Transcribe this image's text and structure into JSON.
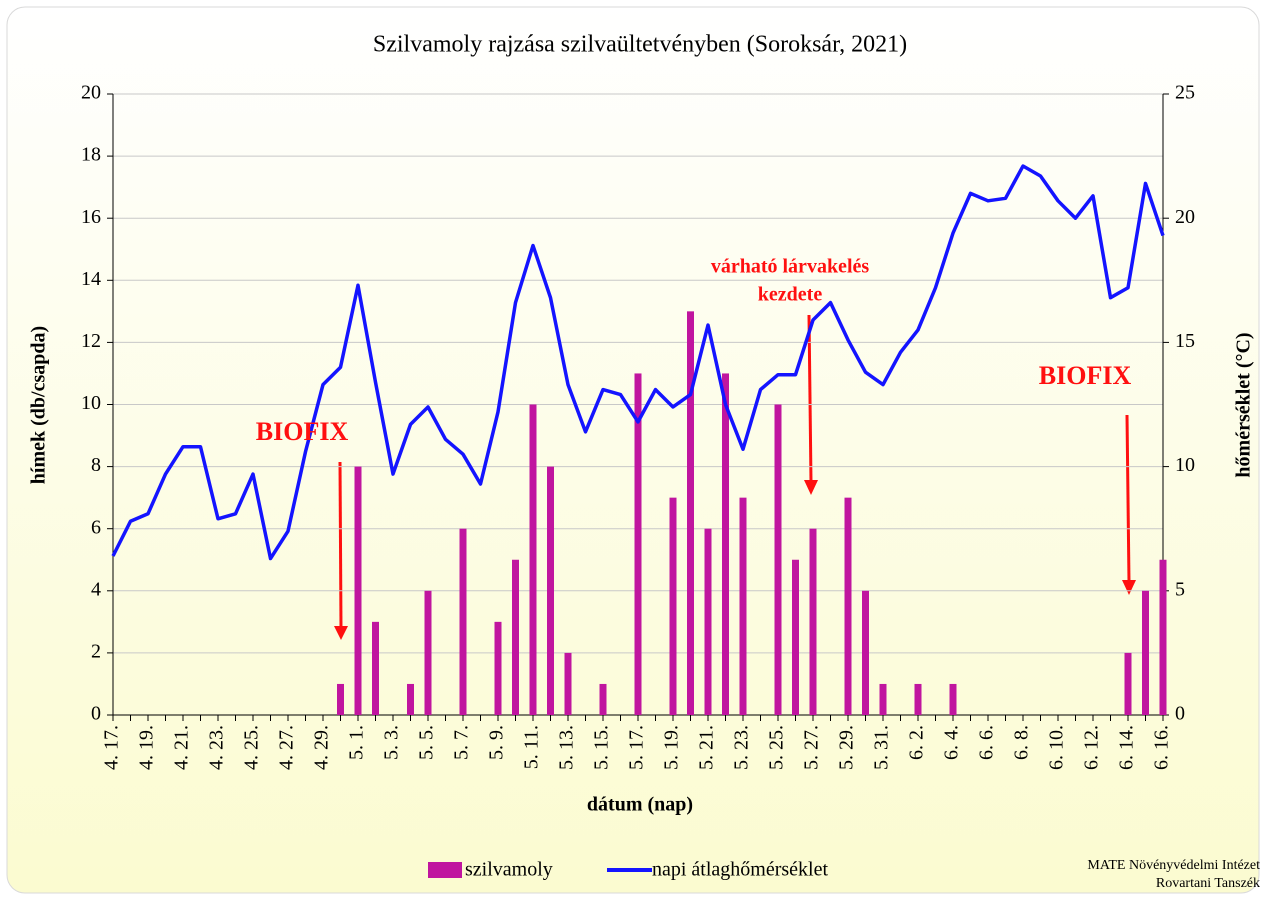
{
  "chart_data": {
    "type": "bar",
    "title": "Szilvamoly rajzása szilvaültetvényben (Soroksár, 2021)",
    "x_label": "dátum (nap)",
    "y_label": "hímek  (db/csapda)",
    "y2_label": "hőmérséklet (°C)",
    "categories": [
      "4. 17.",
      null,
      "4. 19.",
      null,
      "4. 21.",
      null,
      "4. 23.",
      null,
      "4. 25.",
      null,
      "4. 27.",
      null,
      "4. 29.",
      null,
      "5. 1.",
      null,
      "5. 3.",
      null,
      "5. 5.",
      null,
      "5. 7.",
      null,
      "5. 9.",
      null,
      "5. 11.",
      null,
      "5. 13.",
      null,
      "5. 15.",
      null,
      "5. 17.",
      null,
      "5. 19.",
      null,
      "5. 21.",
      null,
      "5. 23.",
      null,
      "5. 25.",
      null,
      "5. 27.",
      null,
      "5. 29.",
      null,
      "5. 31.",
      null,
      "6. 2.",
      null,
      "6. 4.",
      null,
      "6. 6.",
      null,
      "6. 8.",
      null,
      "6. 10.",
      null,
      "6. 12.",
      null,
      "6. 14.",
      null,
      "6. 16."
    ],
    "series": [
      {
        "name": "szilvamoly",
        "color": "#c0159f",
        "type": "bar",
        "values": [
          0,
          0,
          0,
          0,
          0,
          0,
          0,
          0,
          0,
          0,
          0,
          0,
          0,
          1,
          8,
          3,
          0,
          1,
          4,
          0,
          6,
          0,
          3,
          5,
          10,
          8,
          2,
          0,
          1,
          0,
          11,
          0,
          7,
          13,
          6,
          11,
          7,
          0,
          10,
          5,
          6,
          0,
          7,
          4,
          1,
          0,
          1,
          0,
          1,
          0,
          0,
          0,
          0,
          0,
          0,
          0,
          0,
          0,
          2,
          4,
          5
        ]
      },
      {
        "name": "napi átlaghőmérséklet",
        "color": "#1414ff",
        "type": "line",
        "axis": "y2",
        "values": [
          6.4,
          7.8,
          8.1,
          9.7,
          10.8,
          10.8,
          7.9,
          8.1,
          9.7,
          6.3,
          7.4,
          10.6,
          13.3,
          14.0,
          17.3,
          13.4,
          9.7,
          11.7,
          12.4,
          11.1,
          10.5,
          9.3,
          12.2,
          16.6,
          18.9,
          16.8,
          13.3,
          11.4,
          13.1,
          12.9,
          11.8,
          13.1,
          12.4,
          12.9,
          15.7,
          12.5,
          10.7,
          13.1,
          13.7,
          13.7,
          15.9,
          16.6,
          15.1,
          13.8,
          13.3,
          14.6,
          15.5,
          17.2,
          19.4,
          21.0,
          20.7,
          20.8,
          22.1,
          21.7,
          20.7,
          20.0,
          20.9,
          16.8,
          17.2,
          21.4,
          19.3
        ]
      }
    ],
    "ylim": [
      0,
      20
    ],
    "yticks": [
      0,
      2,
      4,
      6,
      8,
      10,
      12,
      14,
      16,
      18,
      20
    ],
    "y2lim": [
      0,
      25
    ],
    "y2ticks": [
      0,
      5,
      10,
      15,
      20,
      25
    ],
    "grid": true,
    "legend": "bottom",
    "annotations": [
      {
        "lines": [
          "BIOFIX"
        ]
      },
      {
        "lines": [
          "várható lárvakelés",
          "kezdete"
        ]
      },
      {
        "lines": [
          "BIOFIX"
        ]
      }
    ],
    "source": [
      "MATE Növényvédelmi Intézet",
      "Rovartani Tanszék"
    ]
  }
}
